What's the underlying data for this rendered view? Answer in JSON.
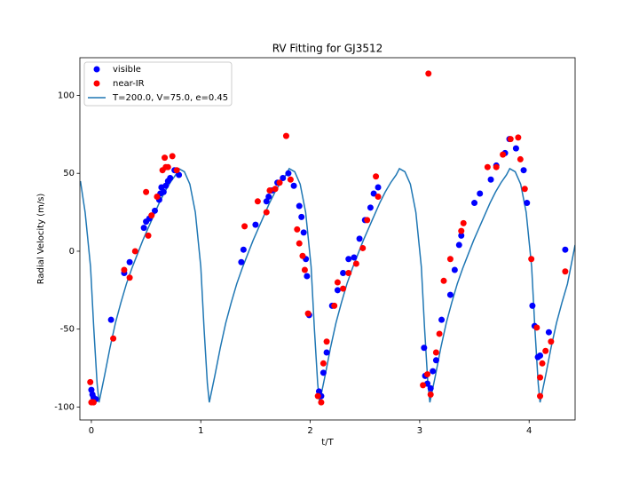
{
  "chart_data": {
    "type": "scatter",
    "title": "RV Fitting for GJ3512",
    "x_label": "t/T",
    "y_label": "Radial Velocity (m/s)",
    "xlim": [
      -0.105,
      4.42
    ],
    "ylim": [
      -108.3,
      124.2
    ],
    "xticks": [
      0,
      1,
      2,
      3,
      4
    ],
    "yticks": [
      -100,
      -50,
      0,
      50,
      100
    ],
    "legend": "upper left",
    "series": [
      {
        "name": "visible",
        "type": "scatter",
        "color": "#0000ff",
        "x": [
          0,
          0.01,
          0.02,
          0.04,
          0.18,
          0.3,
          0.35,
          0.48,
          0.5,
          0.53,
          0.58,
          0.62,
          0.63,
          0.64,
          0.66,
          0.68,
          0.7,
          0.72,
          0.76,
          0.8,
          1.37,
          1.39,
          1.5,
          1.6,
          1.62,
          1.65,
          1.7,
          1.75,
          1.8,
          1.85,
          1.9,
          1.92,
          1.94,
          1.96,
          1.97,
          1.99,
          2.08,
          2.1,
          2.12,
          2.15,
          2.2,
          2.25,
          2.3,
          2.35,
          2.4,
          2.45,
          2.5,
          2.55,
          2.58,
          2.62,
          3.04,
          3.05,
          3.07,
          3.1,
          3.12,
          3.15,
          3.2,
          3.28,
          3.32,
          3.36,
          3.38,
          3.5,
          3.55,
          3.65,
          3.7,
          3.78,
          3.82,
          3.88,
          3.95,
          3.98,
          4.03,
          4.05,
          4.08,
          4.1,
          4.18,
          4.33
        ],
        "values": [
          -89,
          -92,
          -94,
          -95,
          -44,
          -14,
          -7,
          15,
          19,
          21,
          26,
          33,
          37,
          41,
          38,
          42,
          45,
          47,
          52,
          49,
          -7,
          1,
          17,
          32,
          35,
          39,
          44,
          47,
          50,
          42,
          29,
          22,
          12,
          -5,
          -16,
          -41,
          -90,
          -93,
          -78,
          -65,
          -35,
          -25,
          -14,
          -5,
          -4,
          8,
          20,
          28,
          37,
          41,
          -62,
          -80,
          -85,
          -88,
          -77,
          -70,
          -44,
          -28,
          -12,
          4,
          10,
          31,
          37,
          46,
          55,
          63,
          72,
          66,
          52,
          31,
          -35,
          -48,
          -68,
          -67,
          -52,
          1
        ]
      },
      {
        "name": "near-IR",
        "type": "scatter",
        "color": "#ff0000",
        "x": [
          -0.01,
          0,
          0.02,
          0.2,
          0.3,
          0.35,
          0.4,
          0.5,
          0.52,
          0.55,
          0.6,
          0.65,
          0.67,
          0.68,
          0.7,
          0.74,
          0.78,
          1.4,
          1.52,
          1.6,
          1.63,
          1.68,
          1.72,
          1.78,
          1.82,
          1.88,
          1.9,
          1.93,
          1.95,
          1.98,
          2.07,
          2.1,
          2.12,
          2.15,
          2.22,
          2.25,
          2.3,
          2.35,
          2.42,
          2.48,
          2.52,
          2.6,
          2.62,
          3.03,
          3.07,
          3.08,
          3.1,
          3.15,
          3.18,
          3.22,
          3.28,
          3.38,
          3.4,
          3.62,
          3.7,
          3.76,
          3.83,
          3.9,
          3.92,
          3.96,
          4.02,
          4.07,
          4.1,
          4.12,
          4.15,
          4.2,
          4.33,
          4.1
        ],
        "values": [
          -84,
          -97,
          -97,
          -56,
          -12,
          -17,
          0,
          38,
          10,
          23,
          35,
          52,
          60,
          54,
          54,
          61,
          52,
          16,
          32,
          25,
          39,
          40,
          44,
          74,
          46,
          14,
          5,
          -3,
          -12,
          -40,
          -93,
          -97,
          -72,
          -58,
          -35,
          -20,
          -24,
          -14,
          -8,
          2,
          20,
          48,
          35,
          -86,
          -79,
          114,
          -92,
          -65,
          -53,
          -19,
          -5,
          13,
          18,
          54,
          54,
          62,
          72,
          73,
          59,
          40,
          -5,
          -49,
          -81,
          -72,
          -64,
          -58,
          -13,
          -93
        ]
      },
      {
        "name": "T=200.0, V=75.0, e=0.45",
        "type": "line",
        "color": "#1f77b4",
        "x": [
          -0.1,
          -0.057,
          -0.0075,
          0.0225,
          0.0525,
          0.07,
          0.12,
          0.17,
          0.22,
          0.27,
          0.32,
          0.37,
          0.42,
          0.47,
          0.52,
          0.57,
          0.62,
          0.67,
          0.72,
          0.77,
          0.8,
          0.85,
          0.9,
          0.95,
          1.0,
          1.03,
          1.06,
          1.0775,
          1.128,
          1.178,
          1.228,
          1.278,
          1.328,
          1.378,
          1.428,
          1.478,
          1.528,
          1.578,
          1.628,
          1.678,
          1.728,
          1.778,
          1.808,
          1.858,
          1.908,
          1.958,
          2.008,
          2.038,
          2.068,
          2.085,
          2.135,
          2.185,
          2.235,
          2.285,
          2.335,
          2.385,
          2.435,
          2.485,
          2.535,
          2.585,
          2.635,
          2.685,
          2.735,
          2.785,
          2.815,
          2.865,
          2.915,
          2.965,
          3.015,
          3.045,
          3.075,
          3.093,
          3.143,
          3.193,
          3.243,
          3.293,
          3.343,
          3.393,
          3.443,
          3.493,
          3.543,
          3.593,
          3.643,
          3.693,
          3.743,
          3.793,
          3.823,
          3.873,
          3.923,
          3.973,
          4.023,
          4.053,
          4.083,
          4.1,
          4.15,
          4.2,
          4.25,
          4.3,
          4.35,
          4.42
        ],
        "values": [
          45,
          25,
          -10,
          -50,
          -85,
          -97,
          -80,
          -62,
          -46,
          -33,
          -21,
          -11,
          -2,
          7,
          15,
          23,
          31,
          38,
          44,
          49,
          53,
          51,
          43,
          25,
          -10,
          -50,
          -85,
          -97,
          -80,
          -62,
          -46,
          -33,
          -21,
          -11,
          -2,
          7,
          15,
          23,
          31,
          38,
          44,
          49,
          53,
          51,
          43,
          25,
          -10,
          -50,
          -85,
          -97,
          -80,
          -62,
          -46,
          -33,
          -21,
          -11,
          -2,
          7,
          15,
          23,
          31,
          38,
          44,
          49,
          53,
          51,
          43,
          25,
          -10,
          -50,
          -85,
          -97,
          -80,
          -62,
          -46,
          -33,
          -21,
          -11,
          -2,
          7,
          15,
          23,
          31,
          38,
          44,
          49,
          53,
          51,
          43,
          25,
          -10,
          -50,
          -85,
          -97,
          -80,
          -62,
          -46,
          -33,
          -21,
          4
        ]
      }
    ]
  }
}
